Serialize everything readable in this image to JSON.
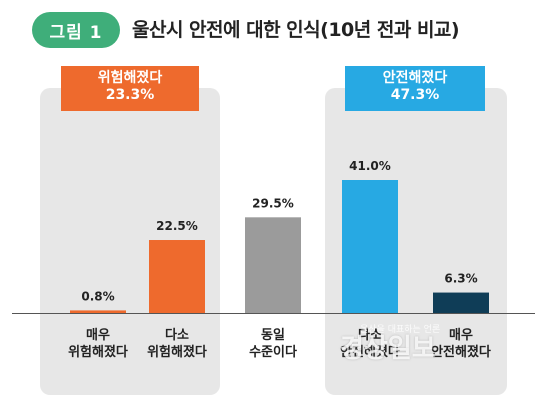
{
  "header": {
    "badge": "그림 1",
    "title": "울산시 안전에 대한 인식(10년 전과 비교)"
  },
  "groups": {
    "danger": {
      "label": "위험해졌다",
      "value": "23.3%",
      "color": "#ee6a2d"
    },
    "safe": {
      "label": "안전해졌다",
      "value": "47.3%",
      "color": "#27a9e3"
    }
  },
  "chart_data": {
    "type": "bar",
    "title": "울산시 안전에 대한 인식(10년 전과 비교)",
    "categories": [
      "매우 위험해졌다",
      "다소 위험해졌다",
      "동일 수준이다",
      "다소 안전해졌다",
      "매우 안전해졌다"
    ],
    "category_lines": [
      [
        "매우",
        "위험해졌다"
      ],
      [
        "다소",
        "위험해졌다"
      ],
      [
        "동일",
        "수준이다"
      ],
      [
        "다소",
        "안전해졌다"
      ],
      [
        "매우",
        "안전해졌다"
      ]
    ],
    "values": [
      0.8,
      22.5,
      29.5,
      41.0,
      6.3
    ],
    "value_labels": [
      "0.8%",
      "22.5%",
      "29.5%",
      "41.0%",
      "6.3%"
    ],
    "colors": [
      "#ee6a2d",
      "#ee6a2d",
      "#9b9b9b",
      "#27a9e3",
      "#0f3d57"
    ],
    "ylim": [
      0,
      41
    ],
    "grid": false
  },
  "watermark": {
    "text": "경상일보",
    "subtext": "울산을 대표하는 언론"
  }
}
